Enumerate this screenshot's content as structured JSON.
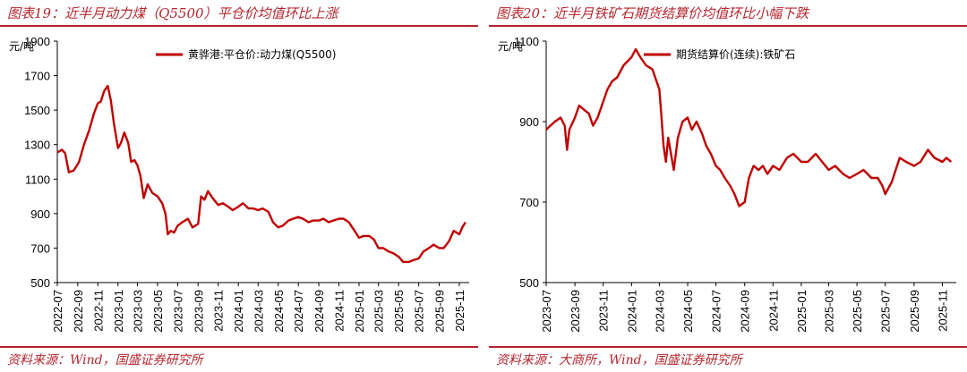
{
  "charts": [
    {
      "title": "图表19：近半月动力煤（Q5500）平仓价均值环比上涨",
      "source": "资料来源：Wind，国盛证券研究所"
    },
    {
      "title": "图表20：近半月铁矿石期货结算价均值环比小幅下跌",
      "source": "资料来源：大商所，Wind，国盛证券研究所"
    }
  ],
  "colors": {
    "accent": "#b3262e",
    "line": "#c00000"
  },
  "chart_data": [
    {
      "type": "line",
      "ylabel": "元/吨",
      "ylim": [
        500,
        1900
      ],
      "yticks": [
        500,
        700,
        900,
        1100,
        1300,
        1500,
        1700,
        1900
      ],
      "xlim": [
        "2022-07",
        "2025-12"
      ],
      "xticks": [
        "2022-07",
        "2022-09",
        "2022-11",
        "2023-01",
        "2023-03",
        "2023-05",
        "2023-07",
        "2023-09",
        "2023-11",
        "2024-01",
        "2024-03",
        "2024-05",
        "2024-07",
        "2024-09",
        "2024-11",
        "2025-01",
        "2025-03",
        "2025-05",
        "2025-07",
        "2025-09",
        "2025-11"
      ],
      "legend_position": "top-center",
      "series": [
        {
          "name": "黄骅港:平仓价:动力煤(Q5500)",
          "x": [
            "2022-07-01",
            "2022-07-15",
            "2022-07-25",
            "2022-08-05",
            "2022-08-20",
            "2022-09-05",
            "2022-09-20",
            "2022-10-05",
            "2022-10-20",
            "2022-11-01",
            "2022-11-10",
            "2022-11-20",
            "2022-12-01",
            "2022-12-10",
            "2022-12-20",
            "2023-01-01",
            "2023-01-10",
            "2023-01-20",
            "2023-02-01",
            "2023-02-10",
            "2023-02-20",
            "2023-03-01",
            "2023-03-10",
            "2023-03-20",
            "2023-04-01",
            "2023-04-15",
            "2023-05-01",
            "2023-05-15",
            "2023-05-25",
            "2023-06-01",
            "2023-06-10",
            "2023-06-20",
            "2023-07-01",
            "2023-07-15",
            "2023-08-01",
            "2023-08-15",
            "2023-09-01",
            "2023-09-10",
            "2023-09-20",
            "2023-10-01",
            "2023-10-15",
            "2023-11-01",
            "2023-11-15",
            "2023-12-01",
            "2023-12-15",
            "2024-01-01",
            "2024-01-15",
            "2024-02-01",
            "2024-02-15",
            "2024-03-01",
            "2024-03-15",
            "2024-04-01",
            "2024-04-15",
            "2024-05-01",
            "2024-05-15",
            "2024-06-01",
            "2024-06-15",
            "2024-07-01",
            "2024-07-15",
            "2024-08-01",
            "2024-08-15",
            "2024-09-01",
            "2024-09-15",
            "2024-10-01",
            "2024-10-15",
            "2024-11-01",
            "2024-11-15",
            "2024-12-01",
            "2024-12-15",
            "2025-01-01",
            "2025-01-15",
            "2025-02-01",
            "2025-02-15",
            "2025-03-01",
            "2025-03-15",
            "2025-04-01",
            "2025-04-15",
            "2025-05-01",
            "2025-05-15",
            "2025-06-01",
            "2025-06-15",
            "2025-07-01",
            "2025-07-15",
            "2025-08-01",
            "2025-08-15",
            "2025-09-01",
            "2025-09-15",
            "2025-10-01",
            "2025-10-15",
            "2025-11-01",
            "2025-11-10",
            "2025-11-20"
          ],
          "y": [
            1255,
            1270,
            1250,
            1140,
            1150,
            1200,
            1300,
            1380,
            1480,
            1540,
            1550,
            1610,
            1640,
            1560,
            1420,
            1280,
            1310,
            1370,
            1310,
            1200,
            1210,
            1180,
            1120,
            990,
            1070,
            1020,
            1000,
            960,
            900,
            780,
            800,
            790,
            830,
            850,
            870,
            820,
            840,
            1000,
            980,
            1030,
            990,
            950,
            960,
            940,
            920,
            940,
            960,
            930,
            930,
            920,
            930,
            910,
            850,
            820,
            830,
            860,
            870,
            880,
            870,
            850,
            860,
            860,
            870,
            850,
            860,
            870,
            870,
            850,
            810,
            760,
            770,
            770,
            750,
            700,
            700,
            680,
            670,
            650,
            620,
            620,
            630,
            640,
            680,
            700,
            720,
            700,
            700,
            740,
            800,
            780,
            820,
            850
          ]
        }
      ]
    },
    {
      "type": "line",
      "ylabel": "元/吨",
      "ylim": [
        500,
        1100
      ],
      "yticks": [
        500,
        700,
        900,
        1100
      ],
      "xlim": [
        "2023-07",
        "2025-12"
      ],
      "xticks": [
        "2023-07",
        "2023-09",
        "2023-11",
        "2024-01",
        "2024-03",
        "2024-05",
        "2024-07",
        "2024-09",
        "2024-11",
        "2025-01",
        "2025-03",
        "2025-05",
        "2025-07",
        "2025-09",
        "2025-11"
      ],
      "legend_position": "top-center",
      "series": [
        {
          "name": "期货结算价(连续):铁矿石",
          "x": [
            "2023-07-01",
            "2023-07-10",
            "2023-07-20",
            "2023-08-01",
            "2023-08-10",
            "2023-08-15",
            "2023-08-20",
            "2023-09-01",
            "2023-09-10",
            "2023-09-20",
            "2023-10-01",
            "2023-10-10",
            "2023-10-20",
            "2023-11-01",
            "2023-11-10",
            "2023-11-20",
            "2023-12-01",
            "2023-12-15",
            "2024-01-01",
            "2024-01-10",
            "2024-01-20",
            "2024-02-01",
            "2024-02-15",
            "2024-03-01",
            "2024-03-05",
            "2024-03-10",
            "2024-03-15",
            "2024-03-20",
            "2024-04-01",
            "2024-04-10",
            "2024-04-20",
            "2024-05-01",
            "2024-05-10",
            "2024-05-20",
            "2024-06-01",
            "2024-06-10",
            "2024-06-20",
            "2024-07-01",
            "2024-07-10",
            "2024-07-20",
            "2024-08-01",
            "2024-08-10",
            "2024-08-20",
            "2024-09-01",
            "2024-09-10",
            "2024-09-20",
            "2024-10-01",
            "2024-10-10",
            "2024-10-20",
            "2024-11-01",
            "2024-11-15",
            "2024-12-01",
            "2024-12-15",
            "2025-01-01",
            "2025-01-15",
            "2025-02-01",
            "2025-02-15",
            "2025-03-01",
            "2025-03-15",
            "2025-04-01",
            "2025-04-15",
            "2025-05-01",
            "2025-05-15",
            "2025-06-01",
            "2025-06-15",
            "2025-06-25",
            "2025-07-01",
            "2025-07-15",
            "2025-08-01",
            "2025-08-15",
            "2025-09-01",
            "2025-09-15",
            "2025-10-01",
            "2025-10-15",
            "2025-11-01",
            "2025-11-10",
            "2025-11-20"
          ],
          "y": [
            880,
            890,
            900,
            910,
            890,
            830,
            880,
            910,
            940,
            930,
            920,
            890,
            910,
            950,
            980,
            1000,
            1010,
            1040,
            1060,
            1080,
            1060,
            1040,
            1030,
            980,
            920,
            840,
            800,
            860,
            780,
            860,
            900,
            910,
            880,
            900,
            870,
            840,
            820,
            790,
            780,
            760,
            740,
            720,
            690,
            700,
            760,
            790,
            780,
            790,
            770,
            790,
            780,
            810,
            820,
            800,
            800,
            820,
            800,
            780,
            790,
            770,
            760,
            770,
            780,
            760,
            760,
            740,
            720,
            750,
            810,
            800,
            790,
            800,
            830,
            810,
            800,
            810,
            800
          ]
        }
      ]
    }
  ]
}
